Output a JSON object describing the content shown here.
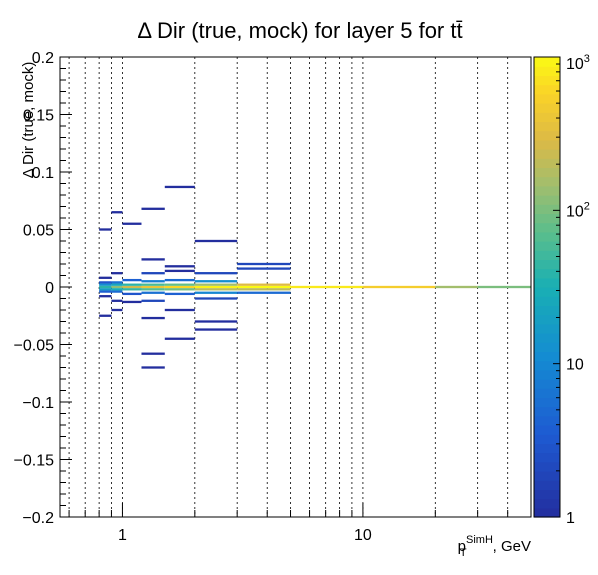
{
  "chart_data": {
    "type": "heatmap",
    "title": "Δ Dir (true, mock) for layer 5 for tt̄",
    "xlabel": {
      "main": "p",
      "sub": "T",
      "sup": "SimH",
      "suffix": ", GeV"
    },
    "ylabel": "Δ Dir (true, mock)",
    "x_scale": "log",
    "xlim": [
      0.55,
      50
    ],
    "ylim": [
      -0.2,
      0.2
    ],
    "x_tick_labels": [
      {
        "value": 1,
        "label": "1"
      },
      {
        "value": 10,
        "label": "10"
      }
    ],
    "y_tick_labels": [
      {
        "value": 0.2,
        "label": "0.2"
      },
      {
        "value": 0.15,
        "label": "0.15"
      },
      {
        "value": 0.1,
        "label": "0.1"
      },
      {
        "value": 0.05,
        "label": "0.05"
      },
      {
        "value": 0,
        "label": "0"
      },
      {
        "value": -0.05,
        "label": "−0.05"
      },
      {
        "value": -0.1,
        "label": "−0.1"
      },
      {
        "value": -0.15,
        "label": "−0.15"
      },
      {
        "value": -0.2,
        "label": "−0.2"
      }
    ],
    "grid_x_values": [
      0.6,
      0.7,
      0.8,
      0.9,
      1,
      2,
      3,
      4,
      5,
      6,
      7,
      8,
      9,
      10,
      20,
      30,
      40
    ],
    "x_bin_edges": [
      0.55,
      0.6,
      0.7,
      0.8,
      0.9,
      1.0,
      1.2,
      1.5,
      2.0,
      3.0,
      5.0,
      10.0,
      20.0,
      30.0,
      50.0
    ],
    "y_bin_width": 0.002,
    "colorbar": {
      "scale": "log",
      "range": [
        1,
        1000
      ],
      "tick_labels": [
        {
          "value": 1,
          "base": "1",
          "exp": ""
        },
        {
          "value": 10,
          "base": "10",
          "exp": ""
        },
        {
          "value": 100,
          "base": "10",
          "exp": "2"
        },
        {
          "value": 1000,
          "base": "10",
          "exp": "3"
        }
      ]
    },
    "cells": [
      {
        "x_bin": [
          0.8,
          0.9
        ],
        "y": 0.002,
        "value": 12
      },
      {
        "x_bin": [
          0.8,
          0.9
        ],
        "y": 0.0,
        "value": 40
      },
      {
        "x_bin": [
          0.8,
          0.9
        ],
        "y": -0.002,
        "value": 18
      },
      {
        "x_bin": [
          0.8,
          0.9
        ],
        "y": 0.004,
        "value": 3
      },
      {
        "x_bin": [
          0.8,
          0.9
        ],
        "y": -0.004,
        "value": 4
      },
      {
        "x_bin": [
          0.8,
          0.9
        ],
        "y": -0.008,
        "value": 1
      },
      {
        "x_bin": [
          0.8,
          0.9
        ],
        "y": 0.008,
        "value": 1
      },
      {
        "x_bin": [
          0.8,
          0.9
        ],
        "y": -0.025,
        "value": 1
      },
      {
        "x_bin": [
          0.8,
          0.9
        ],
        "y": 0.05,
        "value": 1
      },
      {
        "x_bin": [
          0.9,
          1.0
        ],
        "y": 0.0,
        "value": 120
      },
      {
        "x_bin": [
          0.9,
          1.0
        ],
        "y": 0.002,
        "value": 25
      },
      {
        "x_bin": [
          0.9,
          1.0
        ],
        "y": -0.002,
        "value": 30
      },
      {
        "x_bin": [
          0.9,
          1.0
        ],
        "y": 0.004,
        "value": 6
      },
      {
        "x_bin": [
          0.9,
          1.0
        ],
        "y": -0.004,
        "value": 5
      },
      {
        "x_bin": [
          0.9,
          1.0
        ],
        "y": 0.012,
        "value": 1
      },
      {
        "x_bin": [
          0.9,
          1.0
        ],
        "y": -0.012,
        "value": 1
      },
      {
        "x_bin": [
          0.9,
          1.0
        ],
        "y": 0.065,
        "value": 1
      },
      {
        "x_bin": [
          0.9,
          1.0
        ],
        "y": -0.02,
        "value": 1
      },
      {
        "x_bin": [
          1.0,
          1.2
        ],
        "y": 0.0,
        "value": 250
      },
      {
        "x_bin": [
          1.0,
          1.2
        ],
        "y": 0.002,
        "value": 40
      },
      {
        "x_bin": [
          1.0,
          1.2
        ],
        "y": -0.002,
        "value": 45
      },
      {
        "x_bin": [
          1.0,
          1.2
        ],
        "y": 0.006,
        "value": 4
      },
      {
        "x_bin": [
          1.0,
          1.2
        ],
        "y": -0.006,
        "value": 3
      },
      {
        "x_bin": [
          1.0,
          1.2
        ],
        "y": 0.055,
        "value": 1
      },
      {
        "x_bin": [
          1.0,
          1.2
        ],
        "y": -0.013,
        "value": 1
      },
      {
        "x_bin": [
          1.2,
          1.5
        ],
        "y": 0.0,
        "value": 400
      },
      {
        "x_bin": [
          1.2,
          1.5
        ],
        "y": 0.002,
        "value": 60
      },
      {
        "x_bin": [
          1.2,
          1.5
        ],
        "y": -0.002,
        "value": 70
      },
      {
        "x_bin": [
          1.2,
          1.5
        ],
        "y": 0.005,
        "value": 8
      },
      {
        "x_bin": [
          1.2,
          1.5
        ],
        "y": -0.005,
        "value": 6
      },
      {
        "x_bin": [
          1.2,
          1.5
        ],
        "y": 0.012,
        "value": 2
      },
      {
        "x_bin": [
          1.2,
          1.5
        ],
        "y": -0.012,
        "value": 2
      },
      {
        "x_bin": [
          1.2,
          1.5
        ],
        "y": 0.068,
        "value": 1
      },
      {
        "x_bin": [
          1.2,
          1.5
        ],
        "y": 0.024,
        "value": 1
      },
      {
        "x_bin": [
          1.2,
          1.5
        ],
        "y": -0.058,
        "value": 1
      },
      {
        "x_bin": [
          1.2,
          1.5
        ],
        "y": -0.07,
        "value": 1
      },
      {
        "x_bin": [
          1.2,
          1.5
        ],
        "y": -0.027,
        "value": 1
      },
      {
        "x_bin": [
          1.5,
          2.0
        ],
        "y": 0.0,
        "value": 600
      },
      {
        "x_bin": [
          1.5,
          2.0
        ],
        "y": 0.002,
        "value": 80
      },
      {
        "x_bin": [
          1.5,
          2.0
        ],
        "y": -0.002,
        "value": 90
      },
      {
        "x_bin": [
          1.5,
          2.0
        ],
        "y": 0.006,
        "value": 5
      },
      {
        "x_bin": [
          1.5,
          2.0
        ],
        "y": -0.006,
        "value": 4
      },
      {
        "x_bin": [
          1.5,
          2.0
        ],
        "y": 0.018,
        "value": 1
      },
      {
        "x_bin": [
          1.5,
          2.0
        ],
        "y": 0.014,
        "value": 1
      },
      {
        "x_bin": [
          1.5,
          2.0
        ],
        "y": -0.02,
        "value": 1
      },
      {
        "x_bin": [
          1.5,
          2.0
        ],
        "y": -0.045,
        "value": 1
      },
      {
        "x_bin": [
          1.5,
          2.0
        ],
        "y": 0.087,
        "value": 1
      },
      {
        "x_bin": [
          2.0,
          3.0
        ],
        "y": 0.0,
        "value": 900
      },
      {
        "x_bin": [
          2.0,
          3.0
        ],
        "y": 0.002,
        "value": 150
      },
      {
        "x_bin": [
          2.0,
          3.0
        ],
        "y": -0.002,
        "value": 200
      },
      {
        "x_bin": [
          2.0,
          3.0
        ],
        "y": 0.005,
        "value": 12
      },
      {
        "x_bin": [
          2.0,
          3.0
        ],
        "y": -0.005,
        "value": 10
      },
      {
        "x_bin": [
          2.0,
          3.0
        ],
        "y": 0.012,
        "value": 2
      },
      {
        "x_bin": [
          2.0,
          3.0
        ],
        "y": -0.01,
        "value": 2
      },
      {
        "x_bin": [
          2.0,
          3.0
        ],
        "y": -0.03,
        "value": 1
      },
      {
        "x_bin": [
          2.0,
          3.0
        ],
        "y": -0.037,
        "value": 1
      },
      {
        "x_bin": [
          2.0,
          3.0
        ],
        "y": 0.04,
        "value": 1
      },
      {
        "x_bin": [
          3.0,
          5.0
        ],
        "y": 0.0,
        "value": 1000
      },
      {
        "x_bin": [
          3.0,
          5.0
        ],
        "y": 0.002,
        "value": 300
      },
      {
        "x_bin": [
          3.0,
          5.0
        ],
        "y": -0.002,
        "value": 200
      },
      {
        "x_bin": [
          3.0,
          5.0
        ],
        "y": 0.02,
        "value": 2
      },
      {
        "x_bin": [
          3.0,
          5.0
        ],
        "y": 0.016,
        "value": 2
      },
      {
        "x_bin": [
          3.0,
          5.0
        ],
        "y": -0.005,
        "value": 5
      },
      {
        "x_bin": [
          5.0,
          10.0
        ],
        "y": 0.0,
        "value": 800
      },
      {
        "x_bin": [
          10.0,
          20.0
        ],
        "y": 0.0,
        "value": 500
      },
      {
        "x_bin": [
          20.0,
          30.0
        ],
        "y": 0.0,
        "value": 150
      },
      {
        "x_bin": [
          30.0,
          50.0
        ],
        "y": 0.0,
        "value": 100
      }
    ]
  }
}
